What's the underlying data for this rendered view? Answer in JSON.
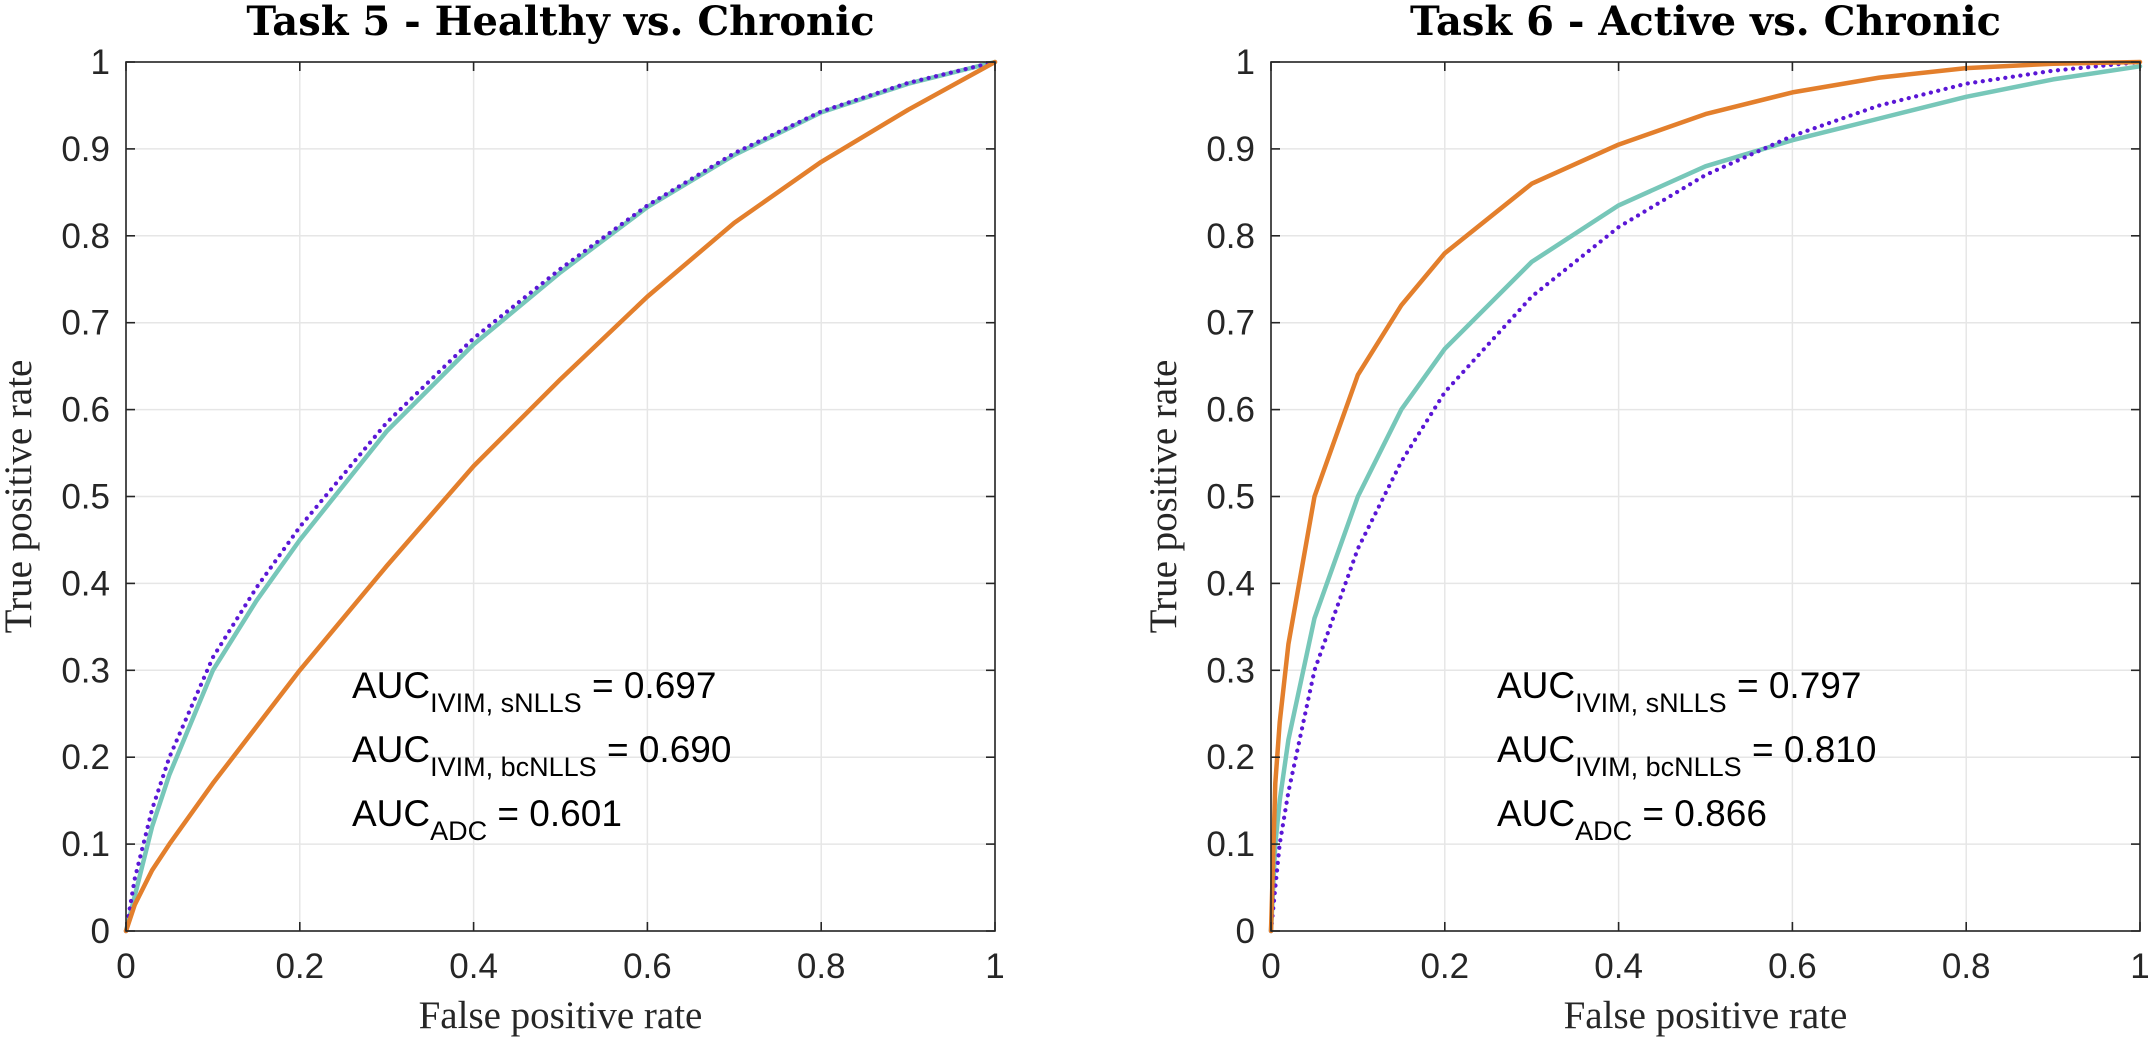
{
  "chart_data": [
    {
      "type": "line",
      "title": "Task 5 - Healthy vs. Chronic",
      "xlabel": "False positive rate",
      "ylabel": "True positive rate",
      "xlim": [
        0,
        1
      ],
      "ylim": [
        0,
        1
      ],
      "grid": true,
      "xticks": [
        "0",
        "0.2",
        "0.4",
        "0.6",
        "0.8",
        "1"
      ],
      "yticks": [
        "0",
        "0.1",
        "0.2",
        "0.3",
        "0.4",
        "0.5",
        "0.6",
        "0.7",
        "0.8",
        "0.9",
        "1"
      ],
      "series": [
        {
          "name": "IVIM, sNLLS",
          "color": "#77c7b9",
          "style": "solid",
          "x": [
            0,
            0.01,
            0.03,
            0.05,
            0.1,
            0.15,
            0.2,
            0.3,
            0.4,
            0.5,
            0.6,
            0.7,
            0.8,
            0.9,
            1
          ],
          "y": [
            0,
            0.04,
            0.12,
            0.18,
            0.3,
            0.38,
            0.45,
            0.575,
            0.675,
            0.758,
            0.833,
            0.893,
            0.942,
            0.975,
            1
          ]
        },
        {
          "name": "IVIM, bcNLLS",
          "color": "#5a16d6",
          "style": "dotted",
          "x": [
            0,
            0.01,
            0.03,
            0.05,
            0.1,
            0.15,
            0.2,
            0.3,
            0.4,
            0.5,
            0.6,
            0.7,
            0.8,
            0.9,
            1
          ],
          "y": [
            0,
            0.06,
            0.14,
            0.2,
            0.315,
            0.395,
            0.465,
            0.585,
            0.682,
            0.762,
            0.835,
            0.895,
            0.943,
            0.976,
            1
          ]
        },
        {
          "name": "ADC",
          "color": "#e37f2c",
          "style": "solid",
          "x": [
            0,
            0.01,
            0.03,
            0.05,
            0.1,
            0.15,
            0.2,
            0.3,
            0.4,
            0.5,
            0.6,
            0.7,
            0.8,
            0.9,
            1
          ],
          "y": [
            0,
            0.03,
            0.07,
            0.1,
            0.17,
            0.235,
            0.3,
            0.42,
            0.535,
            0.635,
            0.73,
            0.815,
            0.885,
            0.945,
            1
          ]
        }
      ],
      "annotations": [
        {
          "main": "AUC",
          "sub": "IVIM, sNLLS",
          "value": " = 0.697"
        },
        {
          "main": "AUC",
          "sub": "IVIM, bcNLLS",
          "value": " = 0.690"
        },
        {
          "main": "AUC",
          "sub": "ADC",
          "value": " = 0.601"
        }
      ]
    },
    {
      "type": "line",
      "title": "Task 6 - Active vs. Chronic",
      "xlabel": "False positive rate",
      "ylabel": "True positive rate",
      "xlim": [
        0,
        1
      ],
      "ylim": [
        0,
        1
      ],
      "grid": true,
      "xticks": [
        "0",
        "0.2",
        "0.4",
        "0.6",
        "0.8",
        "1"
      ],
      "yticks": [
        "0",
        "0.1",
        "0.2",
        "0.3",
        "0.4",
        "0.5",
        "0.6",
        "0.7",
        "0.8",
        "0.9",
        "1"
      ],
      "series": [
        {
          "name": "IVIM, sNLLS",
          "color": "#77c7b9",
          "style": "solid",
          "x": [
            0,
            0.005,
            0.01,
            0.02,
            0.05,
            0.1,
            0.15,
            0.2,
            0.3,
            0.4,
            0.5,
            0.6,
            0.7,
            0.8,
            0.9,
            1
          ],
          "y": [
            0,
            0.1,
            0.15,
            0.22,
            0.36,
            0.5,
            0.6,
            0.67,
            0.77,
            0.835,
            0.88,
            0.91,
            0.935,
            0.96,
            0.98,
            0.995
          ]
        },
        {
          "name": "IVIM, bcNLLS",
          "color": "#5a16d6",
          "style": "dotted",
          "x": [
            0,
            0.005,
            0.01,
            0.02,
            0.05,
            0.1,
            0.15,
            0.2,
            0.3,
            0.4,
            0.5,
            0.6,
            0.7,
            0.8,
            0.9,
            1
          ],
          "y": [
            0,
            0.05,
            0.1,
            0.16,
            0.3,
            0.44,
            0.54,
            0.62,
            0.73,
            0.81,
            0.87,
            0.915,
            0.95,
            0.975,
            0.99,
            1
          ]
        },
        {
          "name": "ADC",
          "color": "#e37f2c",
          "style": "solid",
          "x": [
            0,
            0.005,
            0.01,
            0.02,
            0.05,
            0.1,
            0.15,
            0.2,
            0.3,
            0.4,
            0.5,
            0.6,
            0.7,
            0.8,
            0.9,
            1
          ],
          "y": [
            0,
            0.17,
            0.24,
            0.33,
            0.5,
            0.64,
            0.72,
            0.78,
            0.86,
            0.905,
            0.94,
            0.965,
            0.982,
            0.993,
            0.998,
            1
          ]
        }
      ],
      "annotations": [
        {
          "main": "AUC",
          "sub": "IVIM, sNLLS",
          "value": " = 0.797"
        },
        {
          "main": "AUC",
          "sub": "IVIM, bcNLLS",
          "value": " = 0.810"
        },
        {
          "main": "AUC",
          "sub": "ADC",
          "value": " = 0.866"
        }
      ]
    }
  ]
}
